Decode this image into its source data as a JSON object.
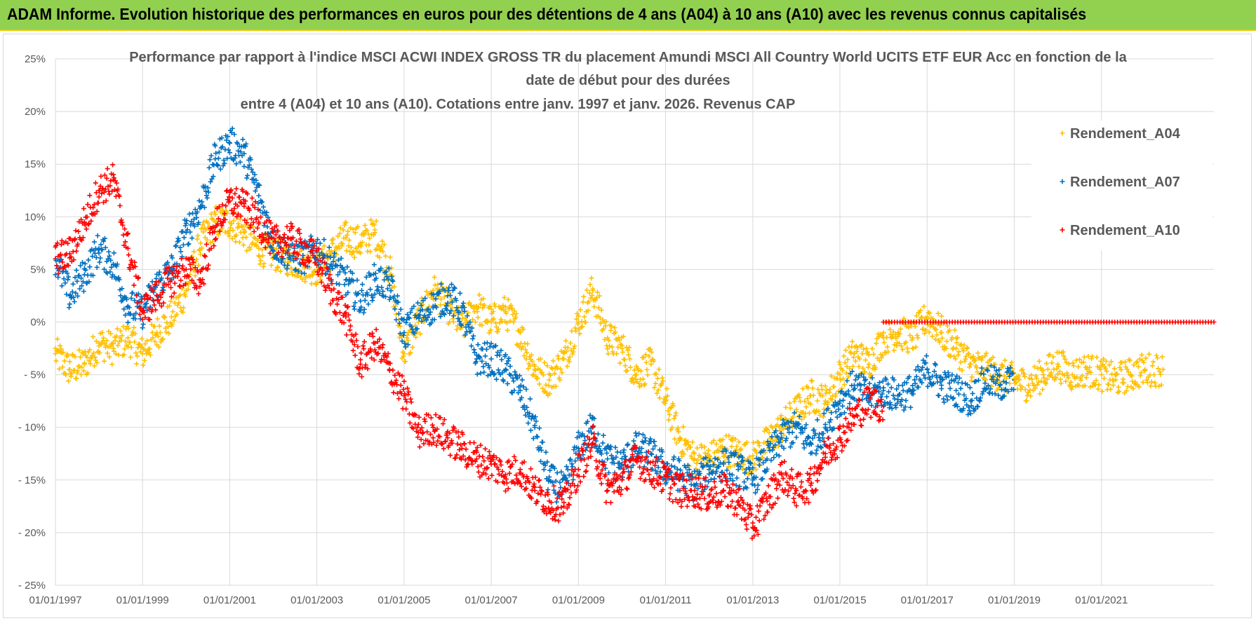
{
  "header": {
    "title": "ADAM Informe. Evolution historique des performances en euros pour des détentions de 4 ans (A04) à 10 ans (A10) avec les revenus connus capitalisés"
  },
  "colors": {
    "header_bg": "#92d050",
    "A04": "#ffc000",
    "A07": "#0070c0",
    "A10": "#ff0000"
  },
  "chart_data": {
    "type": "scatter",
    "title_lines": [
      "Performance par rapport à l'indice MSCI ACWI INDEX GROSS TR  du placement Amundi MSCI All Country World UCITS ETF EUR Acc en fonction de la",
      "date de début pour des durées",
      "entre 4 (A04) et 10 ans (A10).  Cotations entre janv. 1997 et janv. 2026. Revenus CAP"
    ],
    "xlabel": "",
    "ylabel": "",
    "x_ticks": [
      "01/01/1997",
      "01/01/1999",
      "01/01/2001",
      "01/01/2003",
      "01/01/2005",
      "01/01/2007",
      "01/01/2009",
      "01/01/2011",
      "01/01/2013",
      "01/01/2015",
      "01/01/2017",
      "01/01/2019",
      "01/01/2021"
    ],
    "y_ticks": [
      "25%",
      "20%",
      "15%",
      "10%",
      "5%",
      "0%",
      "-5%",
      "-10%",
      "-15%",
      "-20%",
      "-25%"
    ],
    "ylim": [
      -25,
      25
    ],
    "xlim": [
      "1997-01-01",
      "2023-08-01"
    ],
    "grid": true,
    "legend_position": "top-right",
    "series": [
      {
        "name": "Rendement_A04",
        "color": "#ffc000",
        "x": [
          "1997-01-01",
          "1997-05-01",
          "1997-09-01",
          "1998-01-01",
          "1998-05-01",
          "1998-09-01",
          "1999-01-01",
          "1999-05-01",
          "1999-09-01",
          "2000-01-01",
          "2000-05-01",
          "2000-09-01",
          "2001-01-01",
          "2001-05-01",
          "2001-09-01",
          "2002-01-01",
          "2002-05-01",
          "2002-09-01",
          "2003-01-01",
          "2003-05-01",
          "2003-09-01",
          "2004-01-01",
          "2004-05-01",
          "2004-09-01",
          "2005-01-01",
          "2005-05-01",
          "2005-09-01",
          "2006-01-01",
          "2006-05-01",
          "2006-09-01",
          "2007-01-01",
          "2007-05-01",
          "2007-09-01",
          "2008-01-01",
          "2008-05-01",
          "2008-09-01",
          "2009-01-01",
          "2009-05-01",
          "2009-09-01",
          "2010-01-01",
          "2010-05-01",
          "2010-09-01",
          "2011-01-01",
          "2011-05-01",
          "2011-09-01",
          "2012-01-01",
          "2012-05-01",
          "2012-09-01",
          "2013-01-01",
          "2013-05-01",
          "2013-09-01",
          "2014-01-01",
          "2014-05-01",
          "2014-09-01",
          "2015-01-01",
          "2015-05-01",
          "2015-09-01",
          "2016-01-01",
          "2016-05-01",
          "2016-09-01",
          "2017-01-01",
          "2017-05-01",
          "2017-09-01",
          "2018-01-01",
          "2018-05-01",
          "2018-09-01",
          "2019-01-01",
          "2019-05-01",
          "2019-09-01",
          "2020-01-01",
          "2020-05-01",
          "2020-09-01",
          "2021-01-01",
          "2021-05-01",
          "2021-09-01",
          "2022-01-01",
          "2022-06-01"
        ],
        "y": [
          -3.0,
          -4.5,
          -4.0,
          -2.0,
          -2.5,
          -1.5,
          -3.0,
          -1.0,
          0.5,
          3.0,
          7.5,
          9.5,
          9.5,
          8.5,
          7.0,
          6.5,
          6.0,
          5.5,
          5.0,
          6.5,
          8.0,
          7.5,
          8.5,
          5.0,
          -3.0,
          0.0,
          3.0,
          1.5,
          -0.5,
          1.5,
          0.0,
          1.0,
          -1.0,
          -4.5,
          -5.5,
          -3.5,
          0.0,
          3.0,
          -1.5,
          -2.5,
          -5.0,
          -4.0,
          -7.5,
          -11.0,
          -13.0,
          -13.0,
          -12.0,
          -12.5,
          -13.0,
          -11.5,
          -10.0,
          -8.5,
          -7.0,
          -7.5,
          -5.0,
          -3.0,
          -4.0,
          -1.5,
          -1.0,
          -1.5,
          0.5,
          -1.0,
          -2.5,
          -4.0,
          -4.5,
          -5.0,
          -5.5,
          -6.0,
          -5.0,
          -4.0,
          -5.0,
          -4.5,
          -5.0,
          -5.5,
          -5.0,
          -4.5,
          -4.5
        ]
      },
      {
        "name": "Rendement_A07",
        "color": "#0070c0",
        "x": [
          "1997-01-01",
          "1997-05-01",
          "1997-09-01",
          "1998-01-01",
          "1998-05-01",
          "1998-09-01",
          "1999-01-01",
          "1999-05-01",
          "1999-09-01",
          "2000-01-01",
          "2000-05-01",
          "2000-09-01",
          "2001-01-01",
          "2001-05-01",
          "2001-09-01",
          "2002-01-01",
          "2002-05-01",
          "2002-09-01",
          "2003-01-01",
          "2003-05-01",
          "2003-09-01",
          "2004-01-01",
          "2004-05-01",
          "2004-09-01",
          "2005-01-01",
          "2005-05-01",
          "2005-09-01",
          "2006-01-01",
          "2006-05-01",
          "2006-09-01",
          "2007-01-01",
          "2007-05-01",
          "2007-09-01",
          "2008-01-01",
          "2008-05-01",
          "2008-09-01",
          "2009-01-01",
          "2009-05-01",
          "2009-09-01",
          "2010-01-01",
          "2010-05-01",
          "2010-09-01",
          "2011-01-01",
          "2011-05-01",
          "2011-09-01",
          "2012-01-01",
          "2012-05-01",
          "2012-09-01",
          "2013-01-01",
          "2013-05-01",
          "2013-09-01",
          "2014-01-01",
          "2014-05-01",
          "2014-09-01",
          "2015-01-01",
          "2015-05-01",
          "2015-09-01",
          "2016-01-01",
          "2016-05-01",
          "2016-09-01",
          "2017-01-01",
          "2017-05-01",
          "2017-09-01",
          "2018-01-01",
          "2018-05-01",
          "2018-09-01",
          "2019-01-01"
        ],
        "y": [
          6.0,
          2.5,
          4.5,
          7.0,
          5.5,
          1.5,
          1.0,
          3.5,
          5.0,
          8.5,
          11.0,
          15.5,
          17.0,
          16.0,
          12.0,
          7.5,
          6.5,
          6.0,
          7.0,
          5.5,
          4.0,
          2.0,
          4.0,
          3.5,
          -1.0,
          0.5,
          1.5,
          2.5,
          1.0,
          -3.5,
          -3.5,
          -4.5,
          -6.5,
          -10.0,
          -15.0,
          -16.0,
          -12.0,
          -10.0,
          -13.0,
          -13.5,
          -12.0,
          -12.5,
          -14.0,
          -14.5,
          -15.5,
          -14.0,
          -13.5,
          -14.0,
          -15.0,
          -13.0,
          -11.0,
          -10.0,
          -11.5,
          -10.0,
          -7.5,
          -6.0,
          -7.0,
          -6.5,
          -7.0,
          -6.5,
          -4.5,
          -6.0,
          -6.5,
          -7.5,
          -5.5,
          -6.0,
          -5.5
        ]
      },
      {
        "name": "Rendement_A10",
        "color": "#ff0000",
        "x": [
          "1997-01-01",
          "1997-05-01",
          "1997-09-01",
          "1998-01-01",
          "1998-05-01",
          "1998-09-01",
          "1999-01-01",
          "1999-05-01",
          "1999-09-01",
          "2000-01-01",
          "2000-05-01",
          "2000-09-01",
          "2001-01-01",
          "2001-05-01",
          "2001-09-01",
          "2002-01-01",
          "2002-05-01",
          "2002-09-01",
          "2003-01-01",
          "2003-05-01",
          "2003-09-01",
          "2004-01-01",
          "2004-05-01",
          "2004-09-01",
          "2005-01-01",
          "2005-05-01",
          "2005-09-01",
          "2006-01-01",
          "2006-05-01",
          "2006-09-01",
          "2007-01-01",
          "2007-05-01",
          "2007-09-01",
          "2008-01-01",
          "2008-05-01",
          "2008-09-01",
          "2009-01-01",
          "2009-05-01",
          "2009-09-01",
          "2010-01-01",
          "2010-05-01",
          "2010-09-01",
          "2011-01-01",
          "2011-05-01",
          "2011-09-01",
          "2012-01-01",
          "2012-05-01",
          "2012-09-01",
          "2013-01-01",
          "2013-05-01",
          "2013-09-01",
          "2014-01-01",
          "2014-05-01",
          "2014-09-01",
          "2015-01-01",
          "2015-05-01",
          "2015-09-01",
          "2016-01-01"
        ],
        "y": [
          6.0,
          6.5,
          9.5,
          12.5,
          13.5,
          7.0,
          1.0,
          2.5,
          4.0,
          5.0,
          4.0,
          9.0,
          11.5,
          11.0,
          9.5,
          7.5,
          8.0,
          7.0,
          6.0,
          3.0,
          0.5,
          -4.0,
          -2.0,
          -4.5,
          -7.0,
          -10.5,
          -10.0,
          -11.0,
          -12.0,
          -13.0,
          -13.5,
          -14.5,
          -14.0,
          -16.0,
          -17.0,
          -17.5,
          -14.0,
          -11.5,
          -16.0,
          -15.0,
          -13.0,
          -14.0,
          -15.0,
          -16.0,
          -16.0,
          -16.5,
          -16.0,
          -17.0,
          -19.5,
          -17.0,
          -14.5,
          -16.0,
          -15.5,
          -12.5,
          -11.0,
          -9.0,
          -7.5,
          -8.0
        ]
      },
      {
        "name": "",
        "color": "#ff0000",
        "x_range": [
          "2016-01-01",
          "2023-08-01"
        ],
        "y_const": 0.0
      }
    ],
    "legend": [
      "Rendement_A04",
      "Rendement_A07",
      "Rendement_A10"
    ]
  }
}
